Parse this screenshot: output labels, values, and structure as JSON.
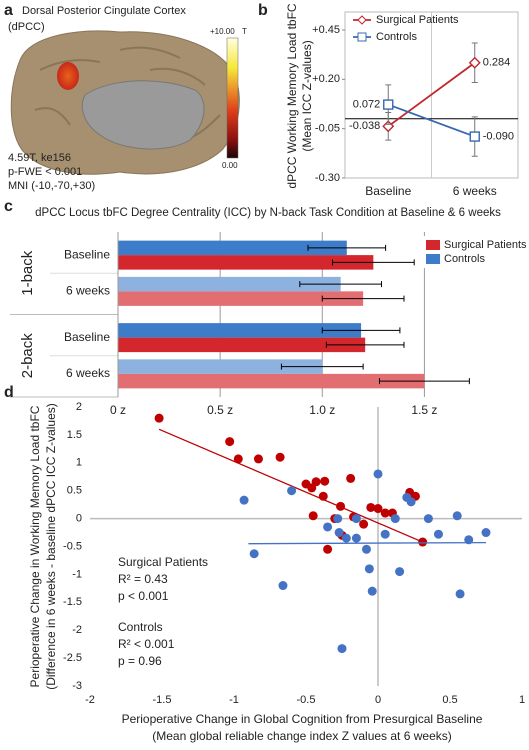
{
  "brain_panel": {
    "panel_label": "a",
    "title": [
      "Dorsal Posterior Cingulate Cortex",
      "(dPCC)"
    ],
    "colorbar_max": "+10.00",
    "colorbar_unit": "T",
    "colorbar_min": "0.00",
    "stats": [
      "4.59T, ke156",
      "p-FWE < 0.001",
      "MNI (-10,-70,+30)"
    ]
  },
  "chart_data": [
    {
      "type": "line",
      "panel_label": "b",
      "y_label": [
        "dPCC Working Memory Load tbFC",
        "(Mean ICC Z-values)"
      ],
      "categories": [
        "Baseline",
        "6 weeks"
      ],
      "ylim": [
        -0.3,
        0.45
      ],
      "yticks": [
        {
          "value": 0.45,
          "label": "+0.45"
        },
        {
          "value": 0.2,
          "label": "+0.20"
        },
        -0.05,
        {
          "value": -0.3,
          "label": "-0.30"
        }
      ],
      "legend": "upper-left",
      "series": [
        {
          "name": "Surgical Patients",
          "color": "#c0272d",
          "marker": "diamond",
          "values": [
            -0.038,
            0.284
          ],
          "value_labels": [
            "-0.038",
            "0.284"
          ],
          "errors": [
            0.07,
            0.1
          ]
        },
        {
          "name": "Controls",
          "color": "#3a68b0",
          "marker": "square",
          "values": [
            0.072,
            -0.09
          ],
          "value_labels": [
            "0.072",
            "-0.090"
          ],
          "errors": [
            0.1,
            0.1
          ]
        }
      ]
    },
    {
      "type": "hbar",
      "panel_label": "c",
      "title": "dPCC Locus tbFC Degree Centrality (ICC) by N-back Task Condition at Baseline & 6 weeks",
      "groups": [
        {
          "name": "1-back",
          "categories": [
            "Baseline",
            "6 weeks"
          ]
        },
        {
          "name": "2-back",
          "categories": [
            "Baseline",
            "6 weeks"
          ]
        }
      ],
      "xlim": [
        0,
        1.87
      ],
      "xticks": [
        {
          "value": 0,
          "label": "0 z"
        },
        {
          "value": 0.5,
          "label": "0.5 z"
        },
        {
          "value": 1,
          "label": "1.0 z"
        },
        {
          "value": 1.5,
          "label": "1.5 z"
        }
      ],
      "grid": true,
      "legend": "upper-right",
      "series": [
        {
          "name": "Controls",
          "color": "#3d7cc9",
          "colors": [
            "#3d7cc9",
            "#8db2e0",
            "#3d7cc9",
            "#8db2e0"
          ],
          "values": [
            1.12,
            1.09,
            1.19,
            1.0
          ],
          "errors": [
            0.19,
            0.2,
            0.19,
            0.2
          ]
        },
        {
          "name": "Surgical Patients",
          "color": "#d3262d",
          "colors": [
            "#d3262d",
            "#e36e72",
            "#d3262d",
            "#e36e72"
          ],
          "values": [
            1.25,
            1.2,
            1.21,
            1.5
          ],
          "errors": [
            0.2,
            0.2,
            0.19,
            0.22
          ]
        }
      ]
    },
    {
      "type": "scatter",
      "panel_label": "d",
      "x_label": [
        "Perioperative Change in Global Cognition from Presurgical Baseline",
        "(Mean global reliable change index Z values at 6 weeks)"
      ],
      "y_label": [
        "Perioperative Change in Working Memory Load tbFC",
        "(Difference in 6 weeks - baseline dPCC ICC Z-values)"
      ],
      "xlim": [
        -2,
        1
      ],
      "xticks": [
        -2,
        -1.5,
        -1,
        -0.5,
        0,
        0.5,
        1
      ],
      "ylim": [
        -3,
        2
      ],
      "yticks": [
        2,
        1.5,
        1,
        0.5,
        0,
        -0.5,
        -1,
        -1.5,
        -2,
        -2.5,
        -3
      ],
      "series": [
        {
          "name": "Surgical Patients",
          "color": "#c00000",
          "stats": [
            "R² = 0.43",
            "p < 0.001"
          ],
          "x": [
            -1.52,
            -1.03,
            -0.97,
            -0.83,
            -0.68,
            -0.5,
            -0.43,
            -0.37,
            -0.46,
            -0.38,
            -0.26,
            -0.19,
            -0.3,
            -0.25,
            -0.17,
            -0.1,
            -0.05,
            0.0,
            0.05,
            0.1,
            0.22,
            0.26,
            0.31,
            -0.35,
            -0.45
          ],
          "values": [
            1.8,
            1.38,
            1.07,
            1.07,
            1.1,
            0.62,
            0.66,
            0.67,
            0.55,
            0.4,
            0.22,
            0.72,
            0.0,
            -0.3,
            0.03,
            -0.1,
            0.2,
            0.18,
            0.1,
            0.1,
            0.47,
            0.4,
            -0.42,
            -0.55,
            0.05
          ],
          "trendline": {
            "x": [
              -1.52,
              0.31
            ],
            "values": [
              1.6,
              -0.42
            ]
          }
        },
        {
          "name": "Controls",
          "color": "#4472c4",
          "stats": [
            "R² < 0.001",
            "p = 0.96"
          ],
          "x": [
            -0.93,
            -0.86,
            -0.66,
            -0.6,
            -0.35,
            -0.28,
            -0.27,
            -0.25,
            -0.22,
            -0.15,
            -0.15,
            -0.08,
            -0.06,
            -0.04,
            0.0,
            0.05,
            0.12,
            0.15,
            0.2,
            0.23,
            0.35,
            0.42,
            0.55,
            0.57,
            0.63,
            0.75
          ],
          "values": [
            0.33,
            -0.63,
            -1.2,
            0.5,
            -0.15,
            0.0,
            -0.25,
            -2.33,
            -0.35,
            -0.35,
            0.0,
            -0.55,
            -0.9,
            -1.3,
            0.8,
            -0.28,
            0.0,
            -0.95,
            0.38,
            0.3,
            0.0,
            -0.28,
            0.05,
            -1.35,
            -0.38,
            -0.25
          ],
          "trendline": {
            "x": [
              -0.9,
              0.75
            ],
            "values": [
              -0.45,
              -0.43
            ]
          }
        }
      ]
    }
  ]
}
